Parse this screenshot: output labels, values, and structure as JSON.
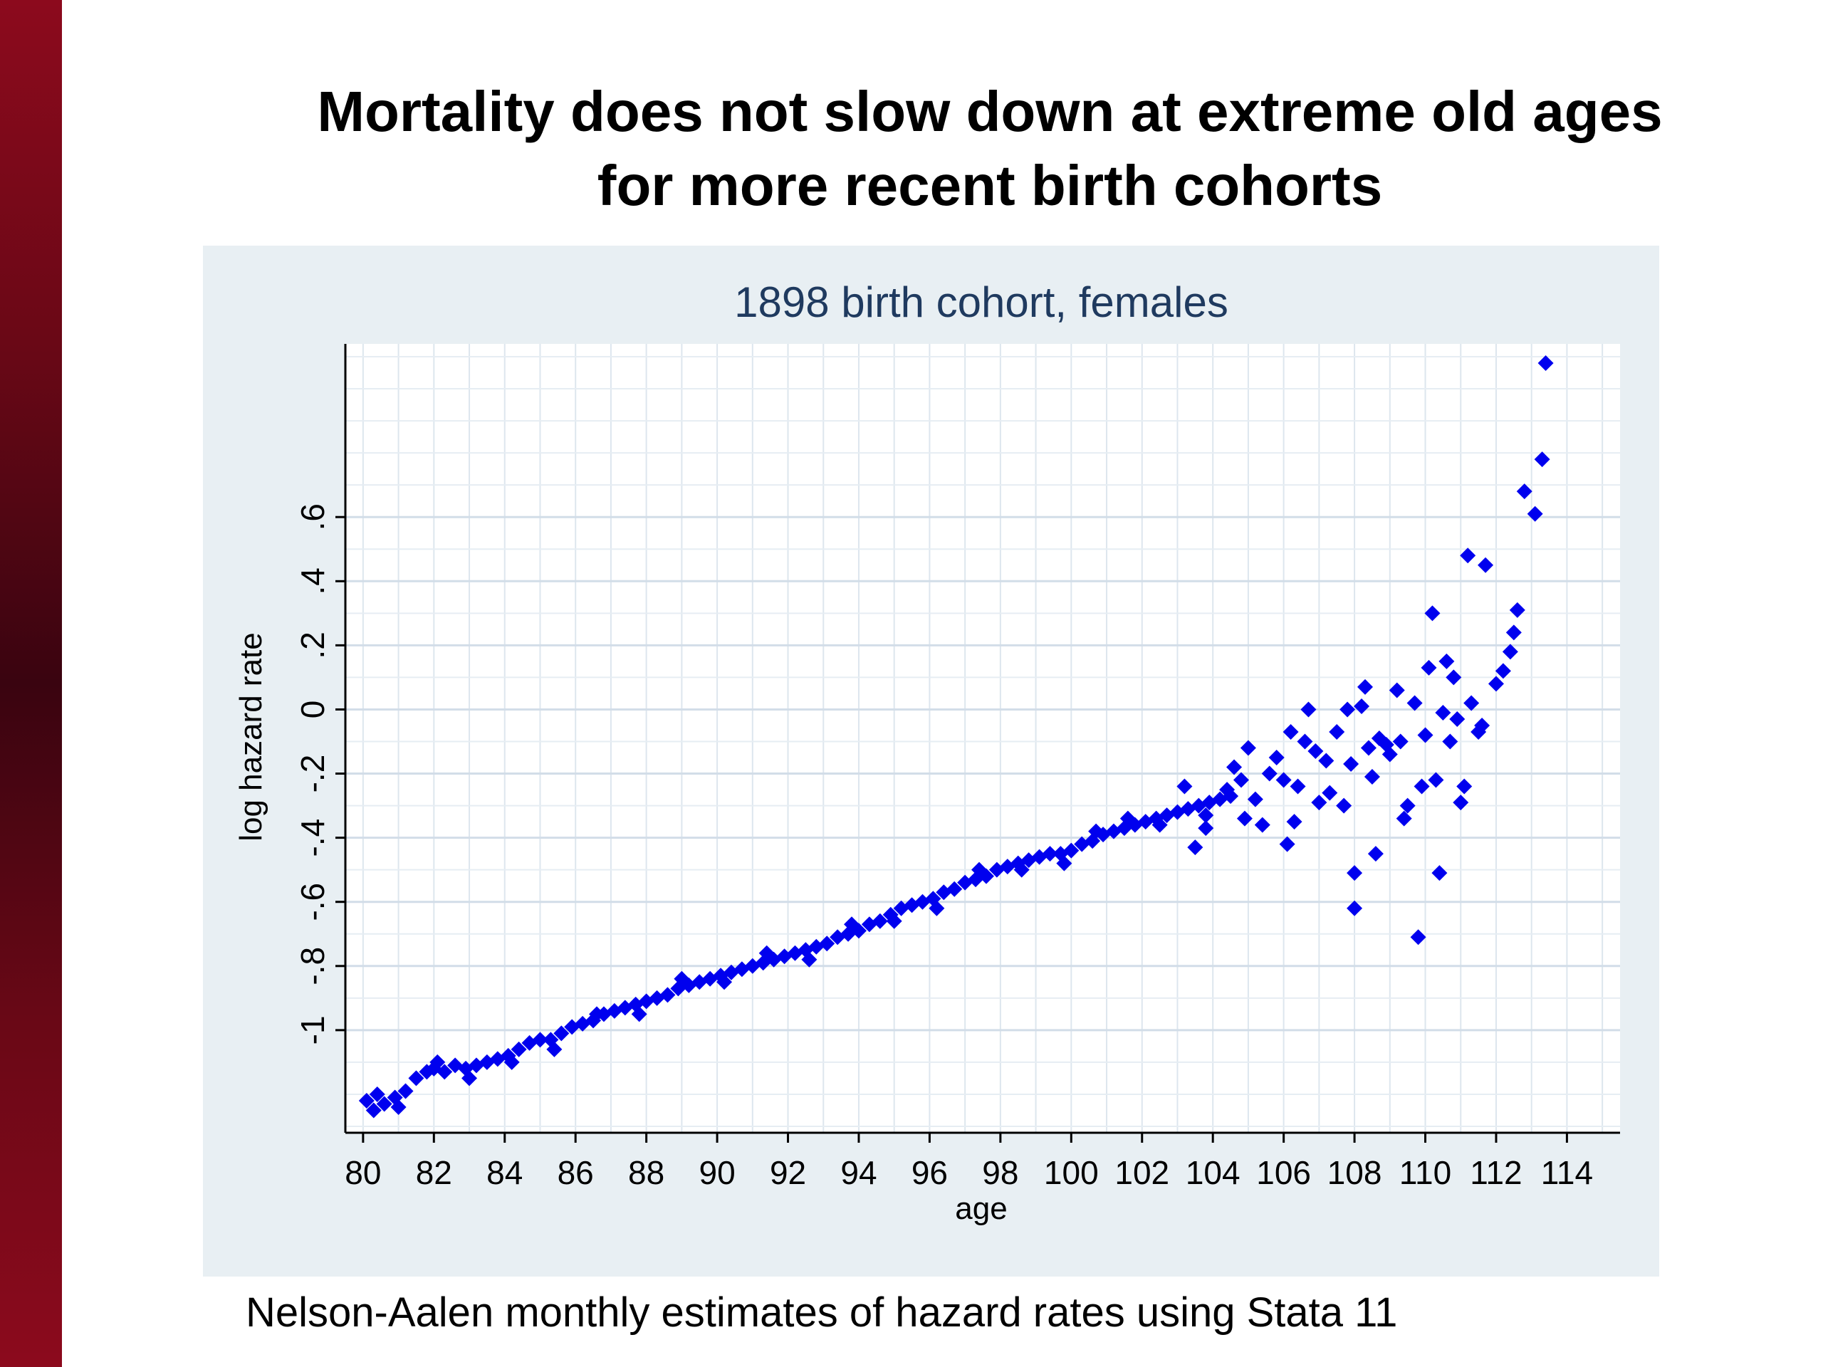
{
  "slide": {
    "title_line1": "Mortality does not slow down at extreme old ages",
    "title_line2": "for more recent birth cohorts",
    "caption": "Nelson-Aalen monthly estimates of hazard rates using Stata 11",
    "accent_color": "#8c0a1d"
  },
  "chart_data": {
    "type": "scatter",
    "title": "1898 birth cohort, females",
    "xlabel": "age",
    "ylabel": "log hazard rate",
    "xlim": [
      79.5,
      115.5
    ],
    "ylim": [
      -1.32,
      1.14
    ],
    "x_ticks": [
      80,
      82,
      84,
      86,
      88,
      90,
      92,
      94,
      96,
      98,
      100,
      102,
      104,
      106,
      108,
      110,
      112,
      114
    ],
    "y_ticks": [
      "-1",
      "-.8",
      "-.6",
      "-.4",
      "-.2",
      "0",
      ".2",
      ".4",
      ".6"
    ],
    "y_tick_values": [
      -1,
      -0.8,
      -0.6,
      -0.4,
      -0.2,
      0,
      0.2,
      0.4,
      0.6
    ],
    "grid": true,
    "marker": "diamond",
    "marker_color": "#0000ee",
    "trend_region": {
      "x_range": [
        80,
        104.5
      ],
      "y_start": -1.23,
      "y_end": -0.27
    },
    "points": [
      [
        80.1,
        -1.22
      ],
      [
        80.3,
        -1.25
      ],
      [
        80.6,
        -1.23
      ],
      [
        80.9,
        -1.21
      ],
      [
        81.2,
        -1.19
      ],
      [
        81.5,
        -1.15
      ],
      [
        81.8,
        -1.13
      ],
      [
        82.0,
        -1.12
      ],
      [
        82.3,
        -1.13
      ],
      [
        82.6,
        -1.11
      ],
      [
        82.9,
        -1.12
      ],
      [
        83.2,
        -1.11
      ],
      [
        83.5,
        -1.1
      ],
      [
        83.8,
        -1.09
      ],
      [
        84.1,
        -1.08
      ],
      [
        84.4,
        -1.06
      ],
      [
        84.7,
        -1.04
      ],
      [
        85.0,
        -1.03
      ],
      [
        85.3,
        -1.03
      ],
      [
        85.6,
        -1.01
      ],
      [
        85.9,
        -0.99
      ],
      [
        86.2,
        -0.98
      ],
      [
        86.5,
        -0.97
      ],
      [
        86.8,
        -0.95
      ],
      [
        87.1,
        -0.94
      ],
      [
        87.4,
        -0.93
      ],
      [
        87.7,
        -0.92
      ],
      [
        88.0,
        -0.91
      ],
      [
        88.3,
        -0.9
      ],
      [
        88.6,
        -0.89
      ],
      [
        88.9,
        -0.87
      ],
      [
        89.2,
        -0.86
      ],
      [
        89.5,
        -0.85
      ],
      [
        89.8,
        -0.84
      ],
      [
        90.1,
        -0.83
      ],
      [
        90.4,
        -0.82
      ],
      [
        90.7,
        -0.81
      ],
      [
        91.0,
        -0.8
      ],
      [
        91.3,
        -0.79
      ],
      [
        91.6,
        -0.78
      ],
      [
        91.9,
        -0.77
      ],
      [
        92.2,
        -0.76
      ],
      [
        92.5,
        -0.75
      ],
      [
        92.8,
        -0.74
      ],
      [
        93.1,
        -0.73
      ],
      [
        93.4,
        -0.71
      ],
      [
        93.7,
        -0.7
      ],
      [
        94.0,
        -0.69
      ],
      [
        94.3,
        -0.67
      ],
      [
        94.6,
        -0.66
      ],
      [
        94.9,
        -0.64
      ],
      [
        95.2,
        -0.62
      ],
      [
        95.5,
        -0.61
      ],
      [
        95.8,
        -0.6
      ],
      [
        96.1,
        -0.59
      ],
      [
        96.4,
        -0.57
      ],
      [
        96.7,
        -0.56
      ],
      [
        97.0,
        -0.54
      ],
      [
        97.3,
        -0.53
      ],
      [
        97.6,
        -0.52
      ],
      [
        97.9,
        -0.5
      ],
      [
        98.2,
        -0.49
      ],
      [
        98.5,
        -0.48
      ],
      [
        98.8,
        -0.47
      ],
      [
        99.1,
        -0.46
      ],
      [
        99.4,
        -0.45
      ],
      [
        99.7,
        -0.45
      ],
      [
        100.0,
        -0.44
      ],
      [
        100.3,
        -0.42
      ],
      [
        100.6,
        -0.41
      ],
      [
        100.9,
        -0.39
      ],
      [
        101.2,
        -0.38
      ],
      [
        101.5,
        -0.37
      ],
      [
        101.8,
        -0.36
      ],
      [
        102.1,
        -0.35
      ],
      [
        102.4,
        -0.34
      ],
      [
        102.7,
        -0.33
      ],
      [
        103.0,
        -0.32
      ],
      [
        103.3,
        -0.31
      ],
      [
        103.6,
        -0.3
      ],
      [
        103.9,
        -0.29
      ],
      [
        104.2,
        -0.28
      ],
      [
        104.5,
        -0.27
      ],
      [
        80.4,
        -1.2
      ],
      [
        81.0,
        -1.24
      ],
      [
        82.1,
        -1.1
      ],
      [
        83.0,
        -1.15
      ],
      [
        84.2,
        -1.1
      ],
      [
        85.4,
        -1.06
      ],
      [
        86.6,
        -0.95
      ],
      [
        87.8,
        -0.95
      ],
      [
        89.0,
        -0.84
      ],
      [
        90.2,
        -0.85
      ],
      [
        91.4,
        -0.76
      ],
      [
        92.6,
        -0.78
      ],
      [
        93.8,
        -0.67
      ],
      [
        95.0,
        -0.66
      ],
      [
        96.2,
        -0.62
      ],
      [
        97.4,
        -0.5
      ],
      [
        98.6,
        -0.5
      ],
      [
        99.8,
        -0.48
      ],
      [
        100.7,
        -0.38
      ],
      [
        101.6,
        -0.34
      ],
      [
        102.5,
        -0.36
      ],
      [
        103.2,
        -0.24
      ],
      [
        103.8,
        -0.33
      ],
      [
        103.5,
        -0.43
      ],
      [
        103.8,
        -0.37
      ],
      [
        104.4,
        -0.25
      ],
      [
        104.6,
        -0.18
      ],
      [
        104.8,
        -0.22
      ],
      [
        105.0,
        -0.12
      ],
      [
        105.2,
        -0.28
      ],
      [
        105.4,
        -0.36
      ],
      [
        104.9,
        -0.34
      ],
      [
        105.6,
        -0.2
      ],
      [
        105.8,
        -0.15
      ],
      [
        106.0,
        -0.22
      ],
      [
        106.2,
        -0.07
      ],
      [
        106.1,
        -0.42
      ],
      [
        106.3,
        -0.35
      ],
      [
        106.4,
        -0.24
      ],
      [
        106.6,
        -0.1
      ],
      [
        106.7,
        0.0
      ],
      [
        106.9,
        -0.13
      ],
      [
        107.0,
        -0.29
      ],
      [
        107.2,
        -0.16
      ],
      [
        107.3,
        -0.26
      ],
      [
        107.5,
        -0.07
      ],
      [
        107.7,
        -0.3
      ],
      [
        107.8,
        0.0
      ],
      [
        107.9,
        -0.17
      ],
      [
        108.0,
        -0.51
      ],
      [
        108.0,
        -0.62
      ],
      [
        108.2,
        0.01
      ],
      [
        108.3,
        0.07
      ],
      [
        108.4,
        -0.12
      ],
      [
        108.5,
        -0.21
      ],
      [
        108.6,
        -0.45
      ],
      [
        108.7,
        -0.09
      ],
      [
        108.9,
        -0.11
      ],
      [
        109.0,
        -0.14
      ],
      [
        109.2,
        0.06
      ],
      [
        109.3,
        -0.1
      ],
      [
        109.4,
        -0.34
      ],
      [
        109.5,
        -0.3
      ],
      [
        109.7,
        0.02
      ],
      [
        109.8,
        -0.71
      ],
      [
        109.9,
        -0.24
      ],
      [
        110.0,
        -0.08
      ],
      [
        110.1,
        0.13
      ],
      [
        110.2,
        0.3
      ],
      [
        110.3,
        -0.22
      ],
      [
        110.4,
        -0.51
      ],
      [
        110.5,
        -0.01
      ],
      [
        110.6,
        0.15
      ],
      [
        110.7,
        -0.1
      ],
      [
        110.8,
        0.1
      ],
      [
        110.9,
        -0.03
      ],
      [
        111.0,
        -0.29
      ],
      [
        111.1,
        -0.24
      ],
      [
        111.2,
        0.48
      ],
      [
        111.3,
        0.02
      ],
      [
        111.5,
        -0.07
      ],
      [
        111.6,
        -0.05
      ],
      [
        111.7,
        0.45
      ],
      [
        112.0,
        0.08
      ],
      [
        112.2,
        0.12
      ],
      [
        112.4,
        0.18
      ],
      [
        112.5,
        0.24
      ],
      [
        112.6,
        0.31
      ],
      [
        112.8,
        0.68
      ],
      [
        113.1,
        0.61
      ],
      [
        113.3,
        0.78
      ],
      [
        113.4,
        1.08
      ]
    ]
  }
}
